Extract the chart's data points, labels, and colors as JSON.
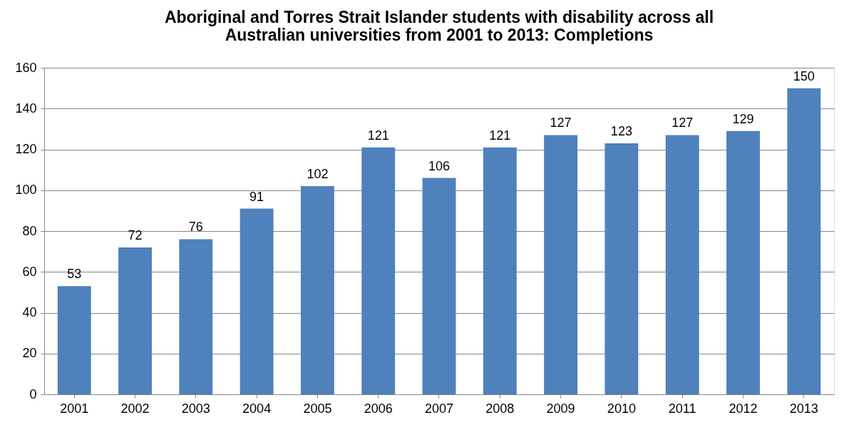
{
  "chart_data": {
    "type": "bar",
    "title": "Aboriginal and Torres Strait Islander students with disability across all\nAustralian universities from 2001 to 2013: Completions",
    "categories": [
      "2001",
      "2002",
      "2003",
      "2004",
      "2005",
      "2006",
      "2007",
      "2008",
      "2009",
      "2010",
      "2011",
      "2012",
      "2013"
    ],
    "values": [
      53,
      72,
      76,
      91,
      102,
      121,
      106,
      121,
      127,
      123,
      127,
      129,
      150
    ],
    "color": "#4f81bd",
    "ylim": [
      0,
      160
    ],
    "yticks": [
      0,
      20,
      40,
      60,
      80,
      100,
      120,
      140,
      160
    ],
    "grid": "y",
    "data_labels": true
  }
}
